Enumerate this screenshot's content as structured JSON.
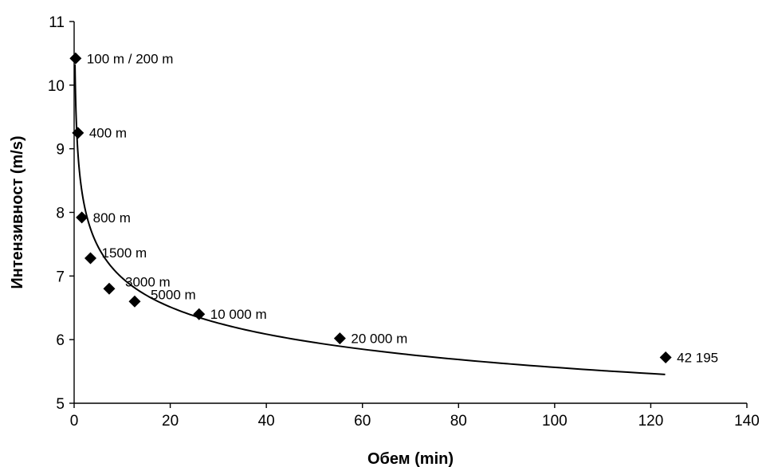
{
  "chart_data": {
    "type": "scatter",
    "title": "",
    "xlabel": "Обем (min)",
    "ylabel": "Интензивност (m/s)",
    "xlim": [
      0,
      140
    ],
    "ylim": [
      5,
      11
    ],
    "xticks": [
      0,
      20,
      40,
      60,
      80,
      100,
      120,
      140
    ],
    "yticks": [
      5,
      6,
      7,
      8,
      9,
      10,
      11
    ],
    "grid": false,
    "legend": "none",
    "points": [
      {
        "x": 0.3,
        "y": 10.42,
        "label": "100 m / 200 m"
      },
      {
        "x": 0.8,
        "y": 9.25,
        "label": "400 m"
      },
      {
        "x": 1.6,
        "y": 7.92,
        "label": "800 m"
      },
      {
        "x": 3.4,
        "y": 7.28,
        "label": "1500 m"
      },
      {
        "x": 7.3,
        "y": 6.8,
        "label": "3000 m"
      },
      {
        "x": 12.6,
        "y": 6.6,
        "label": "5000 m"
      },
      {
        "x": 26.0,
        "y": 6.4,
        "label": "10 000 m"
      },
      {
        "x": 55.3,
        "y": 6.02,
        "label": "20 000 m"
      },
      {
        "x": 123.1,
        "y": 5.72,
        "label": "42 195"
      }
    ],
    "trendline": {
      "type": "power",
      "coef": 8.73,
      "exponent": -0.0978,
      "x_range": [
        0.18,
        123
      ]
    }
  }
}
